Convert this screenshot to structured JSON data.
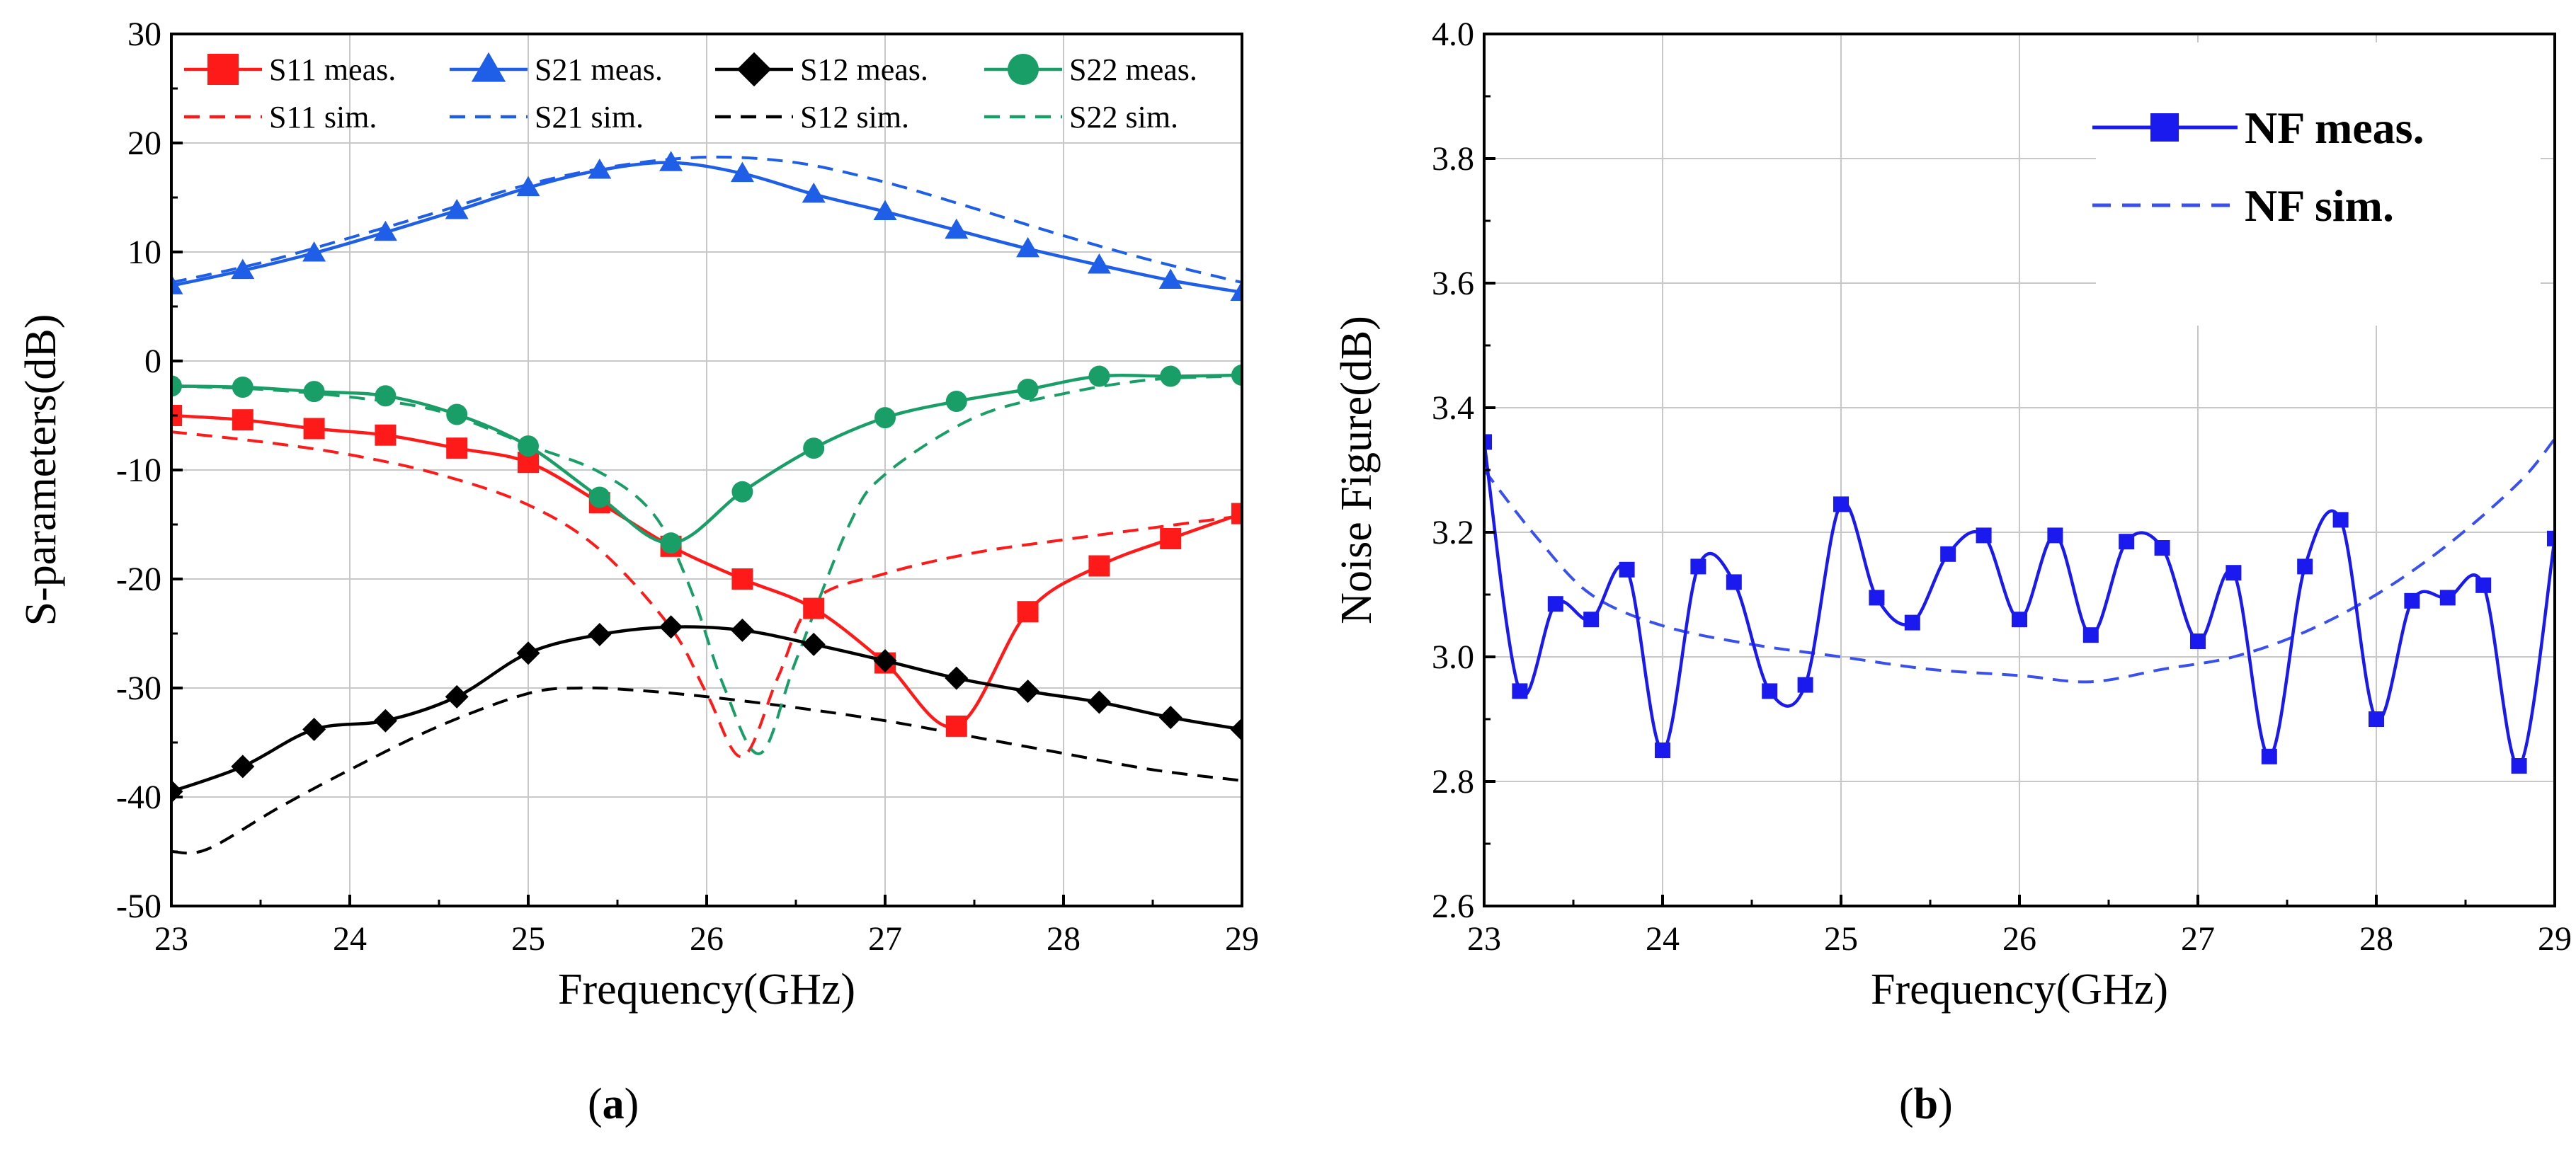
{
  "chart_data": [
    {
      "type": "line",
      "caption": "a",
      "xlabel": "Frequency(GHz)",
      "ylabel": "S-parameters(dB)",
      "xlim": [
        23,
        29
      ],
      "ylim": [
        -50,
        30
      ],
      "xticks": [
        23,
        24,
        25,
        26,
        27,
        28,
        29
      ],
      "yticks": [
        -50,
        -40,
        -30,
        -20,
        -10,
        0,
        10,
        20,
        30
      ],
      "grid": true,
      "legend_position": "top",
      "series": [
        {
          "name": "S11 meas.",
          "color": "#ff1a1a",
          "style": "solid",
          "marker": "square",
          "x": [
            23.0,
            23.4,
            23.8,
            24.2,
            24.6,
            25.0,
            25.4,
            25.8,
            26.2,
            26.6,
            27.0,
            27.4,
            27.8,
            28.2,
            28.6,
            29.0
          ],
          "y": [
            -5,
            -5.4,
            -6.2,
            -6.8,
            -8,
            -9.3,
            -13,
            -17,
            -20,
            -22.7,
            -27.7,
            -33.5,
            -23,
            -18.8,
            -16.3,
            -14
          ]
        },
        {
          "name": "S21 meas.",
          "color": "#1f5fe8",
          "style": "solid",
          "marker": "triangle",
          "x": [
            23.0,
            23.4,
            23.8,
            24.2,
            24.6,
            25.0,
            25.4,
            25.8,
            26.2,
            26.6,
            27.0,
            27.4,
            27.8,
            28.2,
            28.6,
            29.0
          ],
          "y": [
            6.9,
            8.3,
            9.9,
            11.8,
            13.8,
            15.9,
            17.5,
            18.2,
            17.2,
            15.3,
            13.7,
            12,
            10.3,
            8.8,
            7.4,
            6.3
          ]
        },
        {
          "name": "S12 meas.",
          "color": "#000000",
          "style": "solid",
          "marker": "diamond",
          "x": [
            23.0,
            23.4,
            23.8,
            24.2,
            24.6,
            25.0,
            25.4,
            25.8,
            26.2,
            26.6,
            27.0,
            27.4,
            27.8,
            28.2,
            28.6,
            29.0
          ],
          "y": [
            -39.5,
            -37.2,
            -33.8,
            -33,
            -30.8,
            -26.8,
            -25.1,
            -24.4,
            -24.7,
            -26,
            -27.5,
            -29.1,
            -30.3,
            -31.3,
            -32.7,
            -33.8
          ]
        },
        {
          "name": "S22 meas.",
          "color": "#1a9e68",
          "style": "solid",
          "marker": "circle",
          "x": [
            23.0,
            23.4,
            23.8,
            24.2,
            24.6,
            25.0,
            25.4,
            25.8,
            26.2,
            26.6,
            27.0,
            27.4,
            27.8,
            28.2,
            28.6,
            29.0
          ],
          "y": [
            -2.3,
            -2.4,
            -2.8,
            -3.2,
            -4.9,
            -7.8,
            -12.5,
            -16.7,
            -12,
            -8,
            -5.2,
            -3.7,
            -2.6,
            -1.4,
            -1.4,
            -1.3
          ]
        },
        {
          "name": "S11 sim.",
          "color": "#ff1a1a",
          "style": "dashed",
          "marker": "none",
          "x": [
            23.0,
            23.5,
            24.0,
            24.5,
            25.0,
            25.4,
            25.8,
            26.0,
            26.2,
            26.4,
            26.6,
            27.0,
            27.5,
            28.0,
            28.5,
            29.0
          ],
          "y": [
            -6.5,
            -7.4,
            -8.6,
            -10.4,
            -13.2,
            -17.3,
            -24.5,
            -30.5,
            -36.3,
            -29,
            -22,
            -19.5,
            -17.6,
            -16.4,
            -15.3,
            -14.2
          ]
        },
        {
          "name": "S21 sim.",
          "color": "#1f5fe8",
          "style": "dashed",
          "marker": "none",
          "x": [
            23.0,
            23.5,
            24.0,
            24.5,
            25.0,
            25.5,
            26.0,
            26.5,
            27.0,
            27.5,
            28.0,
            28.5,
            29.0
          ],
          "y": [
            7.2,
            9,
            11.3,
            13.7,
            16.2,
            17.9,
            18.7,
            18.2,
            16.4,
            14,
            11.5,
            9.2,
            7.2
          ]
        },
        {
          "name": "S12 sim.",
          "color": "#000000",
          "style": "dashed",
          "marker": "none",
          "x": [
            23.0,
            23.2,
            23.6,
            24.0,
            24.5,
            25.0,
            25.3,
            25.6,
            26.0,
            26.5,
            27.0,
            27.5,
            28.0,
            28.5,
            29.0
          ],
          "y": [
            -45,
            -44.8,
            -41,
            -37.5,
            -33.5,
            -30.5,
            -30,
            -30.2,
            -30.8,
            -31.8,
            -33,
            -34.5,
            -36,
            -37.5,
            -38.5
          ]
        },
        {
          "name": "S22 sim.",
          "color": "#1a9e68",
          "style": "dashed",
          "marker": "none",
          "x": [
            23.0,
            23.5,
            24.0,
            24.5,
            25.0,
            25.4,
            25.7,
            25.9,
            26.1,
            26.3,
            26.5,
            26.8,
            27.0,
            27.5,
            28.0,
            28.5,
            29.0
          ],
          "y": [
            -2.3,
            -2.6,
            -3.3,
            -4.6,
            -7.7,
            -10.2,
            -14,
            -20.5,
            -30,
            -36,
            -27.5,
            -15,
            -10.4,
            -5.2,
            -3,
            -1.7,
            -1.4
          ]
        }
      ]
    },
    {
      "type": "line",
      "caption": "b",
      "xlabel": "Frequency(GHz)",
      "ylabel": "Noise Figure(dB)",
      "xlim": [
        23,
        29
      ],
      "ylim": [
        2.6,
        4.0
      ],
      "xticks": [
        23,
        24,
        25,
        26,
        27,
        28,
        29
      ],
      "yticks": [
        2.6,
        2.8,
        3.0,
        3.2,
        3.4,
        3.6,
        3.8,
        4.0
      ],
      "grid": true,
      "legend_position": "top-right",
      "series": [
        {
          "name": "NF meas.",
          "color": "#1a1aee",
          "style": "solid",
          "marker": "square",
          "x": [
            23.0,
            23.2,
            23.4,
            23.6,
            23.8,
            24.0,
            24.2,
            24.4,
            24.6,
            24.8,
            25.0,
            25.2,
            25.4,
            25.6,
            25.8,
            26.0,
            26.2,
            26.4,
            26.6,
            26.8,
            27.0,
            27.2,
            27.4,
            27.6,
            27.8,
            28.0,
            28.2,
            28.4,
            28.6,
            28.8,
            29.0
          ],
          "y": [
            3.345,
            2.945,
            3.085,
            3.06,
            3.14,
            2.85,
            3.145,
            3.12,
            2.945,
            2.955,
            3.245,
            3.095,
            3.055,
            3.165,
            3.195,
            3.06,
            3.195,
            3.035,
            3.185,
            3.175,
            3.025,
            3.135,
            2.84,
            3.145,
            3.22,
            2.9,
            3.09,
            3.095,
            3.115,
            2.825,
            3.19
          ]
        },
        {
          "name": "NF sim.",
          "color": "#3a50ee",
          "style": "dashed",
          "marker": "none",
          "x": [
            23.0,
            23.3,
            23.6,
            24.0,
            24.5,
            25.0,
            25.5,
            26.0,
            26.4,
            26.8,
            27.2,
            27.6,
            28.0,
            28.4,
            28.8,
            29.0
          ],
          "y": [
            3.3,
            3.19,
            3.1,
            3.05,
            3.02,
            3.0,
            2.98,
            2.97,
            2.96,
            2.98,
            3.0,
            3.04,
            3.1,
            3.18,
            3.28,
            3.35
          ]
        }
      ]
    }
  ]
}
